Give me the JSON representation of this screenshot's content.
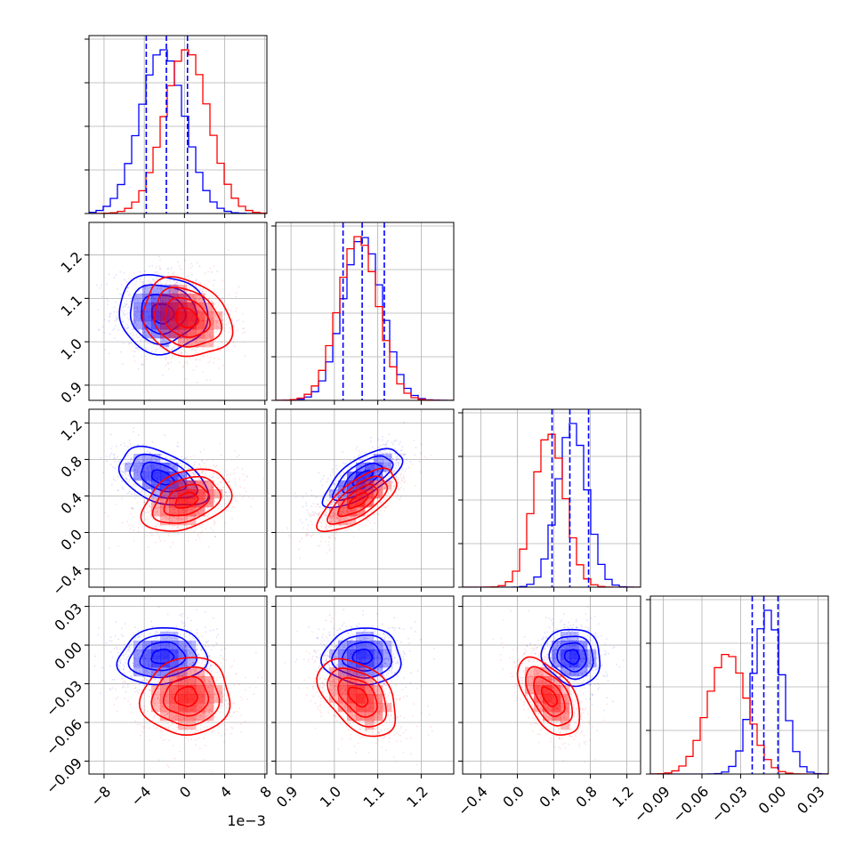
{
  "figure": {
    "offset_text": "1e−3"
  },
  "colors": {
    "blue": "#0000ff",
    "red": "#ff0000",
    "grid": "#b0b0b0",
    "frame": "#000000"
  },
  "chart_data": {
    "type": "corner",
    "grid": true,
    "parameters": [
      {
        "ticks": [
          -0.008,
          -0.004,
          0.0,
          0.004,
          0.008
        ],
        "tick_labels": [
          "−8",
          "−4",
          "0",
          "4",
          "8"
        ],
        "range": [
          -0.0095,
          0.0082
        ],
        "offset_text": "1e−3"
      },
      {
        "ticks": [
          0.9,
          1.0,
          1.1,
          1.2
        ],
        "tick_labels": [
          "0.9",
          "1.0",
          "1.1",
          "1.2"
        ],
        "range": [
          0.865,
          1.275
        ]
      },
      {
        "ticks": [
          -0.4,
          0.0,
          0.4,
          0.8,
          1.2
        ],
        "tick_labels": [
          "−0.4",
          "0.0",
          "0.4",
          "0.8",
          "1.2"
        ],
        "range": [
          -0.6,
          1.35
        ]
      },
      {
        "ticks": [
          -0.09,
          -0.06,
          -0.03,
          0.0,
          0.03
        ],
        "tick_labels": [
          "−0.09",
          "−0.06",
          "−0.03",
          "0.00",
          "0.03"
        ],
        "range": [
          -0.1,
          0.038
        ]
      }
    ],
    "series": [
      {
        "color": "#0000ff",
        "mean": [
          -0.0022,
          1.065,
          0.6,
          -0.009
        ],
        "std": [
          0.0022,
          0.045,
          0.16,
          0.011
        ],
        "corr": [
          [
            1,
            -0.05,
            -0.45,
            0.1
          ],
          [
            -0.05,
            1,
            0.7,
            0.0
          ],
          [
            -0.45,
            0.7,
            1,
            -0.1
          ],
          [
            0.1,
            0.0,
            -0.1,
            1
          ]
        ],
        "quantile_lines": [
          [
            -0.0038,
            -0.0018,
            0.0003
          ],
          [
            1.02,
            1.064,
            1.115
          ],
          [
            0.38,
            0.575,
            0.78
          ],
          [
            -0.021,
            -0.012,
            -0.001
          ]
        ]
      },
      {
        "color": "#ff0000",
        "mean": [
          0.0002,
          1.055,
          0.35,
          -0.04
        ],
        "std": [
          0.0022,
          0.045,
          0.17,
          0.015
        ],
        "corr": [
          [
            1,
            -0.2,
            0.35,
            0.05
          ],
          [
            -0.2,
            1,
            0.7,
            -0.45
          ],
          [
            0.35,
            0.7,
            1,
            -0.55
          ],
          [
            0.05,
            -0.45,
            -0.55,
            1
          ]
        ]
      }
    ]
  }
}
